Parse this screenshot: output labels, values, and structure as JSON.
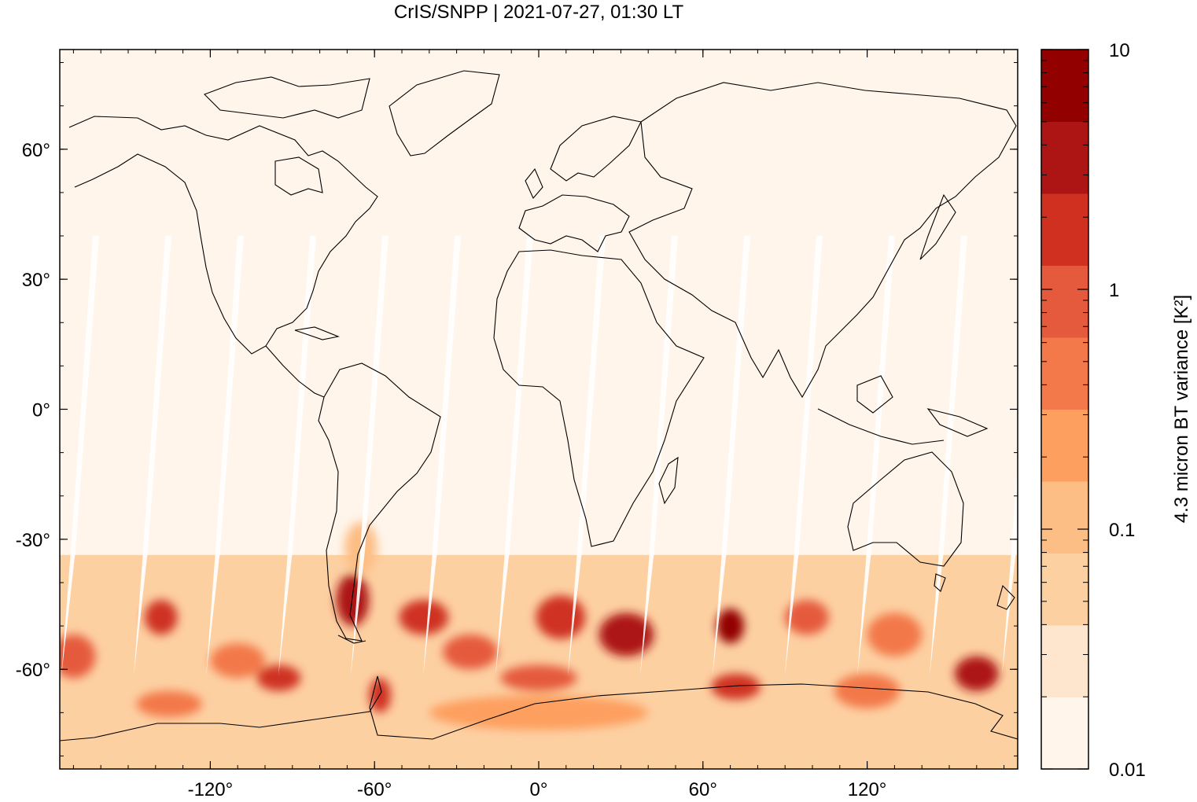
{
  "title": "CrIS/SNPP | 2021-07-27, 01:30 LT",
  "map": {
    "projection": "equirectangular",
    "lon_range": [
      -175,
      175
    ],
    "lat_range": [
      -83,
      83
    ],
    "lon_ticks": [
      {
        "value": -120,
        "label": "-120°"
      },
      {
        "value": -60,
        "label": "-60°"
      },
      {
        "value": 0,
        "label": "0°"
      },
      {
        "value": 60,
        "label": "60°"
      },
      {
        "value": 120,
        "label": "120°"
      }
    ],
    "lat_ticks": [
      {
        "value": 60,
        "label": "60°"
      },
      {
        "value": 30,
        "label": "30°"
      },
      {
        "value": 0,
        "label": "0°"
      },
      {
        "value": -30,
        "label": "-30°"
      },
      {
        "value": -60,
        "label": "-60°"
      }
    ],
    "background_color": "#fff5eb"
  },
  "colorbar": {
    "title": "4.3 micron BT variance [K²]",
    "scale": "log",
    "range": [
      0.01,
      10
    ],
    "ticks": [
      {
        "value": 10,
        "label": "10"
      },
      {
        "value": 1,
        "label": "1"
      },
      {
        "value": 0.1,
        "label": "0.1"
      },
      {
        "value": 0.01,
        "label": "0.01"
      }
    ],
    "colors": [
      "#fff5eb",
      "#fee6ce",
      "#fdd0a2",
      "#fdbe85",
      "#fd9f5f",
      "#f3784a",
      "#e55a3c",
      "#cf3020",
      "#ad1515",
      "#930000"
    ]
  },
  "chart_data": {
    "type": "heatmap",
    "title": "CrIS/SNPP | 2021-07-27, 01:30 LT",
    "colorbar_label": "4.3 micron BT variance [K²]",
    "value_range": [
      0.01,
      10
    ],
    "blobs": [
      {
        "lon": 32,
        "lat": -52,
        "value": 5.0,
        "rlon": 10,
        "rlat": 5
      },
      {
        "lon": 70,
        "lat": -50,
        "value": 6.0,
        "rlon": 5,
        "rlat": 4
      },
      {
        "lon": -68,
        "lat": -44,
        "value": 3.0,
        "rlon": 6,
        "rlat": 6
      },
      {
        "lon": -42,
        "lat": -48,
        "value": 2.5,
        "rlon": 9,
        "rlat": 4
      },
      {
        "lon": 160,
        "lat": -61,
        "value": 4.0,
        "rlon": 8,
        "rlat": 4
      },
      {
        "lon": -58,
        "lat": -66,
        "value": 2.5,
        "rlon": 4,
        "rlat": 4
      },
      {
        "lon": -95,
        "lat": -62,
        "value": 1.8,
        "rlon": 8,
        "rlat": 3
      },
      {
        "lon": 72,
        "lat": -64,
        "value": 2.0,
        "rlon": 9,
        "rlat": 3
      },
      {
        "lon": -138,
        "lat": -48,
        "value": 1.5,
        "rlon": 6,
        "rlat": 4
      },
      {
        "lon": 98,
        "lat": -48,
        "value": 1.2,
        "rlon": 8,
        "rlat": 4
      },
      {
        "lon": 8,
        "lat": -48,
        "value": 1.3,
        "rlon": 9,
        "rlat": 5
      },
      {
        "lon": 0,
        "lat": -62,
        "value": 1.0,
        "rlon": 14,
        "rlat": 3
      },
      {
        "lon": -170,
        "lat": -57,
        "value": 1.0,
        "rlon": 8,
        "rlat": 5
      },
      {
        "lon": 130,
        "lat": -52,
        "value": 0.5,
        "rlon": 10,
        "rlat": 5
      },
      {
        "lon": -25,
        "lat": -56,
        "value": 0.8,
        "rlon": 10,
        "rlat": 4
      },
      {
        "lon": -110,
        "lat": -58,
        "value": 0.6,
        "rlon": 10,
        "rlat": 4
      },
      {
        "lon": 120,
        "lat": -65,
        "value": 0.5,
        "rlon": 12,
        "rlat": 4
      },
      {
        "lon": -135,
        "lat": -68,
        "value": 0.5,
        "rlon": 12,
        "rlat": 3
      },
      {
        "lon": -65,
        "lat": -32,
        "value": 0.15,
        "rlon": 6,
        "rlat": 6
      },
      {
        "lon": 0,
        "lat": -70,
        "value": 0.3,
        "rlon": 40,
        "rlat": 4
      }
    ],
    "band_background": {
      "lat_top": -30,
      "lat_bottom": -83,
      "value": 0.04
    }
  }
}
